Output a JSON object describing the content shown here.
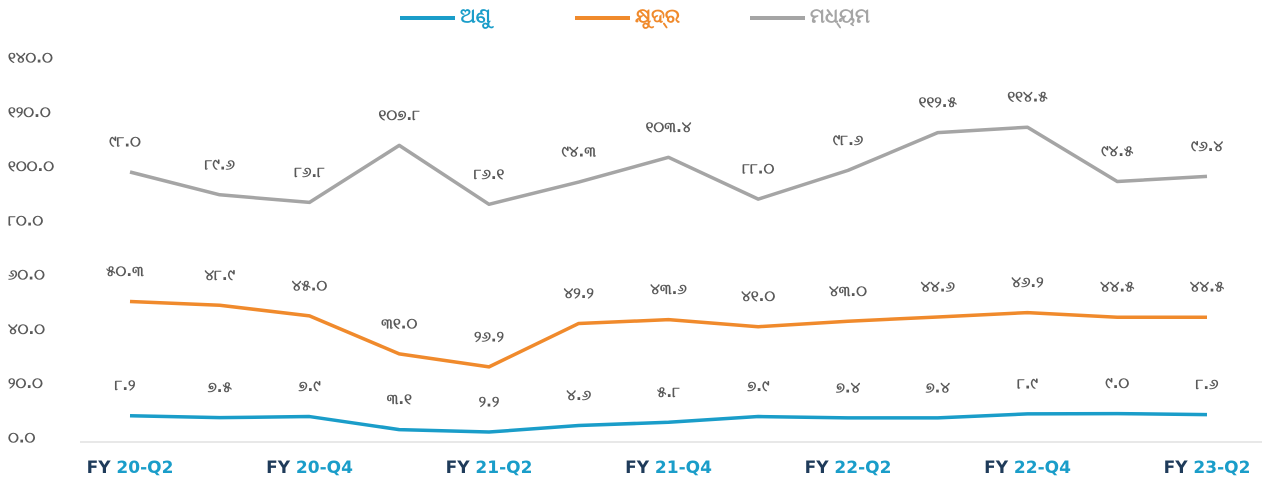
{
  "chart_data": {
    "type": "line",
    "categories": [
      "FY 20-Q2",
      null,
      "FY 20-Q4",
      null,
      "FY 21-Q2",
      null,
      "FY 21-Q4",
      null,
      "FY 22-Q2",
      null,
      "FY 22-Q4",
      null,
      "FY 23-Q2"
    ],
    "series": [
      {
        "name": "ଅଣୁ",
        "color": "#1a9dc9",
        "values": [
          8.2,
          7.5,
          7.9,
          3.1,
          2.2,
          4.6,
          5.8,
          7.9,
          7.4,
          7.4,
          8.9,
          9.0,
          8.6
        ],
        "value_labels": [
          "୮.୨",
          "୭.୫",
          "୭.୯",
          "୩.୧",
          "୨.୨",
          "୪.୬",
          "୫.୮",
          "୭.୯",
          "୭.୪",
          "୭.୪",
          "୮.୯",
          "୯.୦",
          "୮.୬"
        ]
      },
      {
        "name": "କ୍ଷୁଦ୍ର",
        "color": "#f08a2c",
        "values": [
          50.3,
          48.9,
          45.0,
          31.0,
          26.2,
          42.2,
          43.6,
          41.0,
          43.0,
          44.6,
          46.2,
          44.5,
          44.5
        ],
        "value_labels": [
          "୫୦.୩",
          "୪୮.୯",
          "୪୫.୦",
          "୩୧.୦",
          "୨୬.୨",
          "୪୨.୨",
          "୪୩.୬",
          "୪୧.୦",
          "୪୩.୦",
          "୪୪.୬",
          "୪୬.୨",
          "୪୪.୫",
          "୪୪.୫"
        ]
      },
      {
        "name": "ମଧ୍ୟମ",
        "color": "#a5a5a5",
        "values": [
          98.0,
          89.6,
          86.8,
          107.8,
          86.1,
          94.3,
          103.4,
          88.0,
          98.6,
          112.5,
          114.5,
          94.5,
          96.4
        ],
        "value_labels": [
          "୯୮.୦",
          "୮୯.୬",
          "୮୬.୮",
          "୧୦୭.୮",
          "୮୬.୧",
          "୯୪.୩",
          "୧୦୩.୪",
          "୮୮.୦",
          "୯୮.୬",
          "୧୧୨.୫",
          "୧୧୪.୫",
          "୯୪.୫",
          "୯୬.୪"
        ]
      }
    ],
    "ylim": [
      0,
      140
    ],
    "yticks": [
      {
        "value": 0,
        "label": "୦.୦"
      },
      {
        "value": 20,
        "label": "୨୦.୦"
      },
      {
        "value": 40,
        "label": "୪୦.୦"
      },
      {
        "value": 60,
        "label": "୬୦.୦"
      },
      {
        "value": 80,
        "label": "୮୦.୦"
      },
      {
        "value": 100,
        "label": "୧୦୦.୦"
      },
      {
        "value": 120,
        "label": "୧୨୦.୦"
      },
      {
        "value": 140,
        "label": "୧୪୦.୦"
      }
    ],
    "grid": false,
    "legend": "top"
  }
}
